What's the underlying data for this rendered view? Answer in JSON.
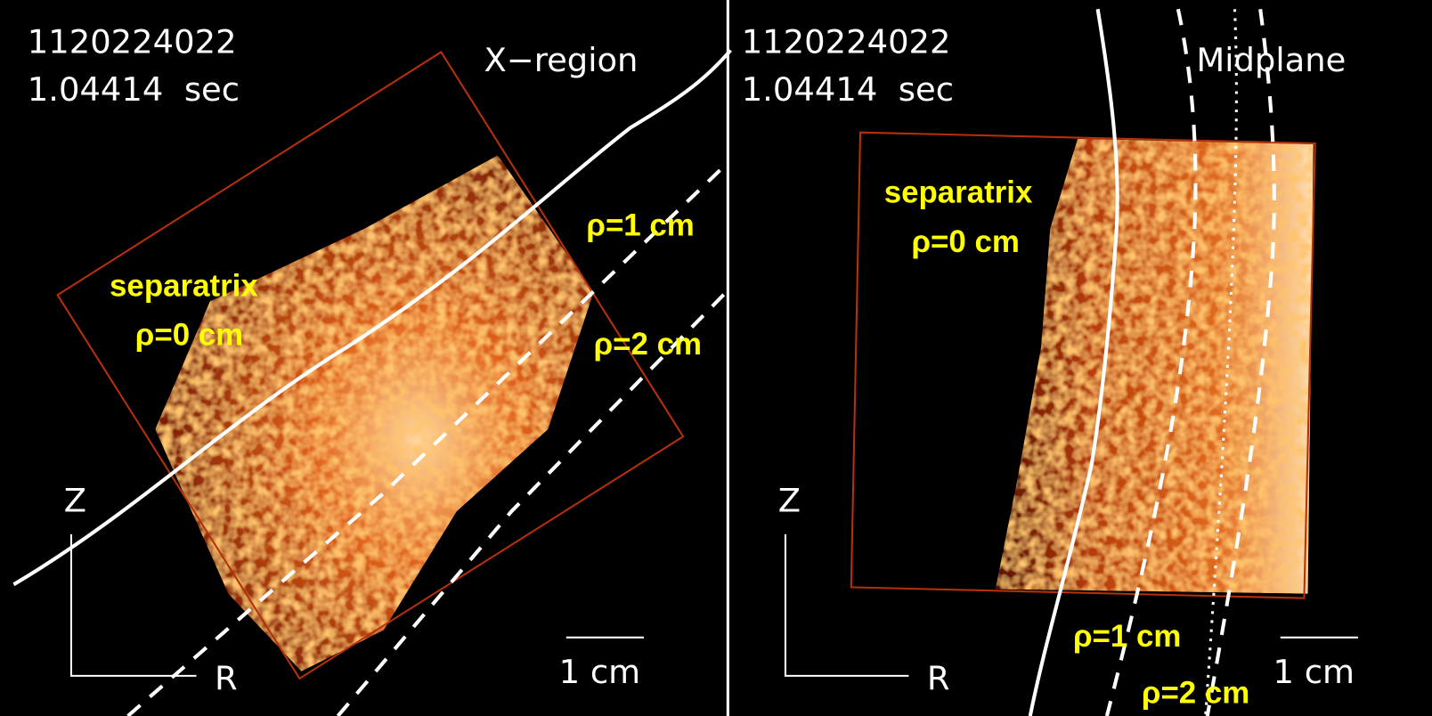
{
  "panels": [
    {
      "shot": "1120224022",
      "time": "1.04414  sec",
      "title": "X−region",
      "axis_z": "Z",
      "axis_r": "R",
      "scale": "1 cm",
      "separatrix": "separatrix",
      "rho0": "ρ=0 cm",
      "rho1": "ρ=1 cm",
      "rho2": "ρ=2 cm"
    },
    {
      "shot": "1120224022",
      "time": "1.04414  sec",
      "title": "Midplane",
      "axis_z": "Z",
      "axis_r": "R",
      "scale": "1 cm",
      "separatrix": "separatrix",
      "rho0": "ρ=0 cm",
      "rho1": "ρ=1 cm",
      "rho2": "ρ=2 cm"
    }
  ]
}
